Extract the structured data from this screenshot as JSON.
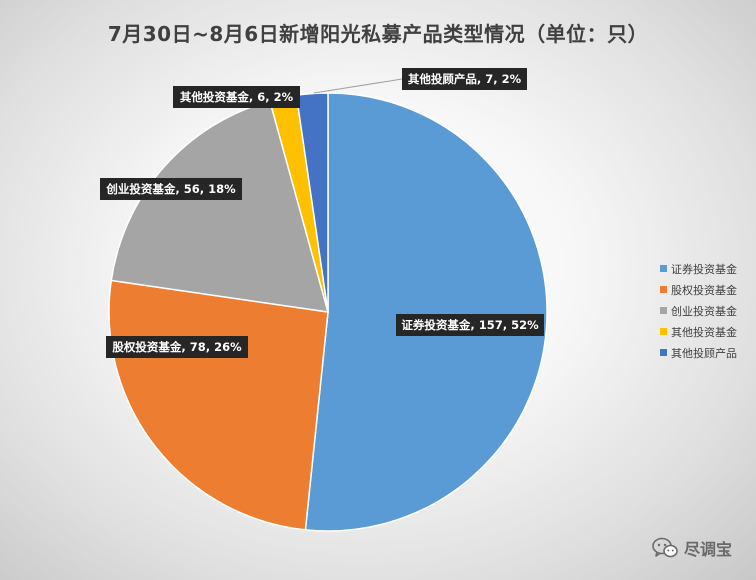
{
  "chart_data": {
    "type": "pie",
    "title": "7月30日~8月6日新增阳光私募产品类型情况（单位：只）",
    "slices": [
      {
        "name": "证券投资基金",
        "value": 157,
        "percent": "52%",
        "label": "证券投资基金, 157, 52%",
        "color": "#5B9BD5"
      },
      {
        "name": "股权投资基金",
        "value": 78,
        "percent": "26%",
        "label": "股权投资基金, 78, 26%",
        "color": "#ED7D31"
      },
      {
        "name": "创业投资基金",
        "value": 56,
        "percent": "18%",
        "label": "创业投资基金, 56, 18%",
        "color": "#A5A5A5"
      },
      {
        "name": "其他投资基金",
        "value": 6,
        "percent": "2%",
        "label": "其他投资基金, 6, 2%",
        "color": "#FFC000"
      },
      {
        "name": "其他投顾产品",
        "value": 7,
        "percent": "2%",
        "label": "其他投顾产品, 7, 2%",
        "color": "#4472C4"
      }
    ],
    "legend_position": "right",
    "start_angle": "12 o'clock",
    "direction": "clockwise"
  },
  "watermark": {
    "text": "尽调宝",
    "icon": "wechat-icon"
  }
}
